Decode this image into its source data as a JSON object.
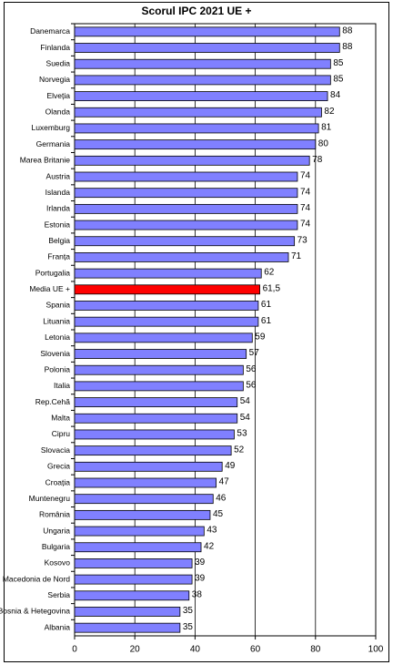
{
  "chart_data": {
    "type": "hbar",
    "title": "Scorul IPC 2021 UE +",
    "categories": [
      "Danemarca",
      "Finlanda",
      "Suedia",
      "Norvegia",
      "Elveția",
      "Olanda",
      "Luxemburg",
      "Germania",
      "Marea Britanie",
      "Austria",
      "Islanda",
      "Irlanda",
      "Estonia",
      "Belgia",
      "Franța",
      "Portugalia",
      "Media UE +",
      "Spania",
      "Lituania",
      "Letonia",
      "Slovenia",
      "Polonia",
      "Italia",
      "Rep.Cehă",
      "Malta",
      "Cipru",
      "Slovacia",
      "Grecia",
      "Croația",
      "Muntenegru",
      "România",
      "Ungaria",
      "Bulgaria",
      "Kosovo",
      "Macedonia de Nord",
      "Serbia",
      "Bosnia & Hetegovina",
      "Albania"
    ],
    "values": [
      88,
      88,
      85,
      85,
      84,
      82,
      81,
      80,
      78,
      74,
      74,
      74,
      74,
      73,
      71,
      62,
      61.5,
      61,
      61,
      59,
      57,
      56,
      56,
      54,
      54,
      53,
      52,
      49,
      47,
      46,
      45,
      43,
      42,
      39,
      39,
      38,
      35,
      35
    ],
    "value_labels": [
      "88",
      "88",
      "85",
      "85",
      "84",
      "82",
      "81",
      "80",
      "78",
      "74",
      "74",
      "74",
      "74",
      "73",
      "71",
      "62",
      "61,5",
      "61",
      "61",
      "59",
      "57",
      "56",
      "56",
      "54",
      "54",
      "53",
      "52",
      "49",
      "47",
      "46",
      "45",
      "43",
      "42",
      "39",
      "39",
      "38",
      "35",
      "35"
    ],
    "color": "#8080ff",
    "highlight_color": "#ff0000",
    "highlight_index": 16,
    "xlim": [
      0,
      100
    ],
    "xticks": [
      0,
      20,
      40,
      60,
      80,
      100
    ],
    "grid": true
  }
}
